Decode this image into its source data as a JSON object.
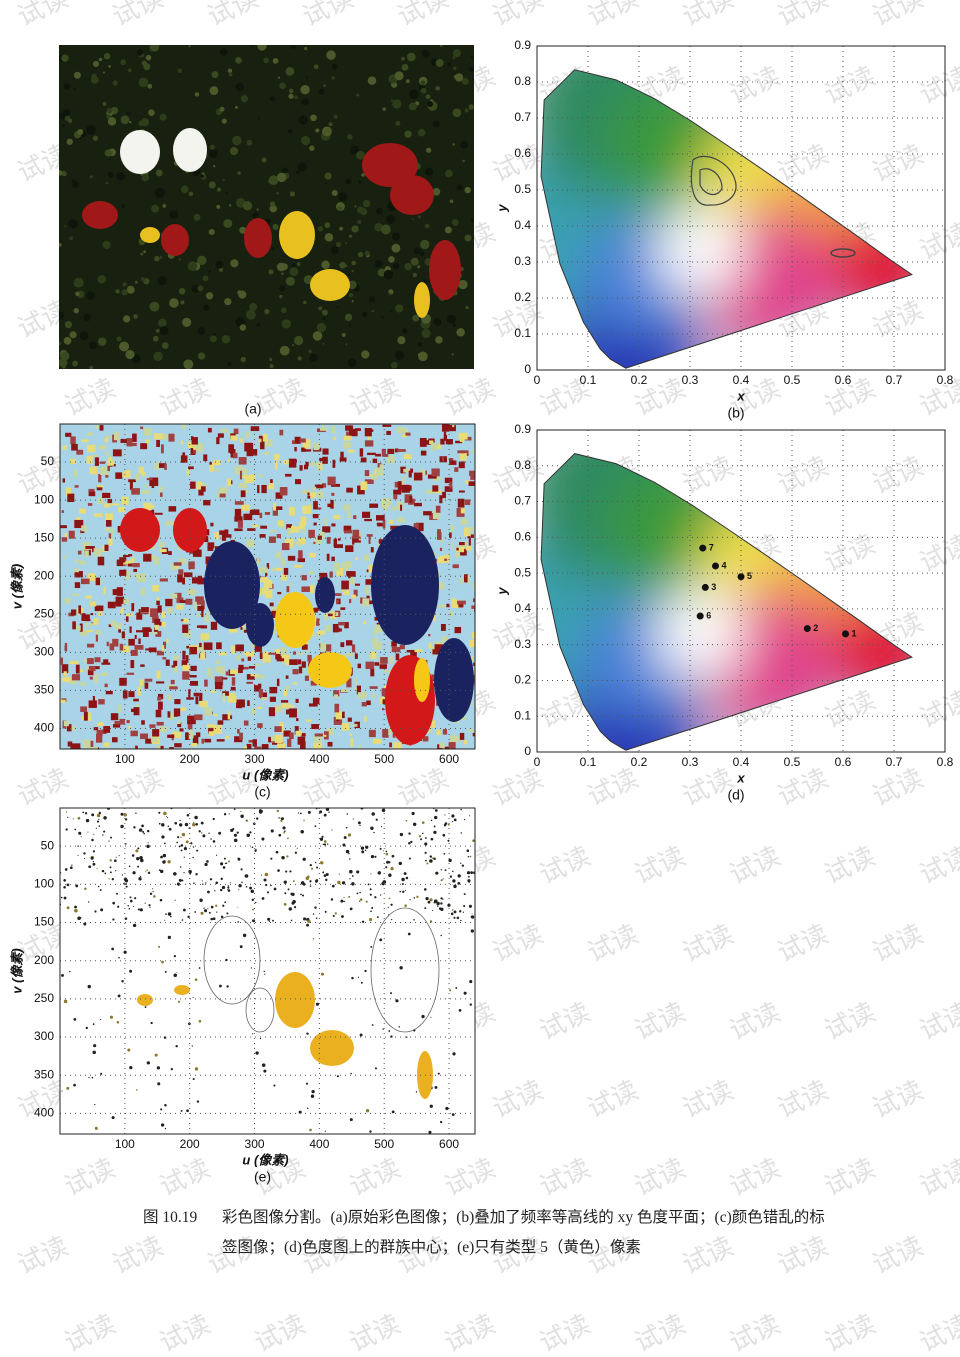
{
  "watermark": "试读",
  "panels": {
    "a": {
      "label": "(a)"
    },
    "b": {
      "label": "(b)",
      "x_label": "x",
      "y_label": "y",
      "xlim": [
        0,
        0.8
      ],
      "ylim": [
        0,
        0.9
      ],
      "xticks": [
        0,
        0.1,
        0.2,
        0.3,
        0.4,
        0.5,
        0.6,
        0.7,
        0.8
      ],
      "yticks": [
        0,
        0.1,
        0.2,
        0.3,
        0.4,
        0.5,
        0.6,
        0.7,
        0.8,
        0.9
      ]
    },
    "c": {
      "label": "(c)",
      "x_label": "u (像素)",
      "y_label": "v (像素)",
      "xlim": [
        0,
        640
      ],
      "ylim": [
        0,
        427
      ],
      "xticks": [
        100,
        200,
        300,
        400,
        500,
        600
      ],
      "yticks": [
        50,
        100,
        150,
        200,
        250,
        300,
        350,
        400
      ]
    },
    "d": {
      "label": "(d)",
      "x_label": "x",
      "y_label": "y",
      "xlim": [
        0,
        0.8
      ],
      "ylim": [
        0,
        0.9
      ],
      "xticks": [
        0,
        0.1,
        0.2,
        0.3,
        0.4,
        0.5,
        0.6,
        0.7,
        0.8
      ],
      "yticks": [
        0,
        0.1,
        0.2,
        0.3,
        0.4,
        0.5,
        0.6,
        0.7,
        0.8,
        0.9
      ],
      "clusters": [
        {
          "label": "7",
          "x": 0.325,
          "y": 0.57
        },
        {
          "label": "4",
          "x": 0.35,
          "y": 0.52
        },
        {
          "label": "5",
          "x": 0.4,
          "y": 0.49
        },
        {
          "label": "3",
          "x": 0.33,
          "y": 0.46
        },
        {
          "label": "6",
          "x": 0.32,
          "y": 0.38
        },
        {
          "label": "2",
          "x": 0.53,
          "y": 0.345
        },
        {
          "label": "1",
          "x": 0.605,
          "y": 0.33
        }
      ]
    },
    "e": {
      "label": "(e)",
      "x_label": "u (像素)",
      "y_label": "v (像素)",
      "xlim": [
        0,
        640
      ],
      "ylim": [
        0,
        427
      ],
      "xticks": [
        100,
        200,
        300,
        400,
        500,
        600
      ],
      "yticks": [
        50,
        100,
        150,
        200,
        250,
        300,
        350,
        400
      ]
    }
  },
  "caption": {
    "number": "图 10.19",
    "text": "彩色图像分割。(a)原始彩色图像；(b)叠加了频率等高线的 xy 色度平面；(c)颜色错乱的标签图像；(d)色度图上的群族中心；(e)只有类型 5（黄色）像素"
  }
}
